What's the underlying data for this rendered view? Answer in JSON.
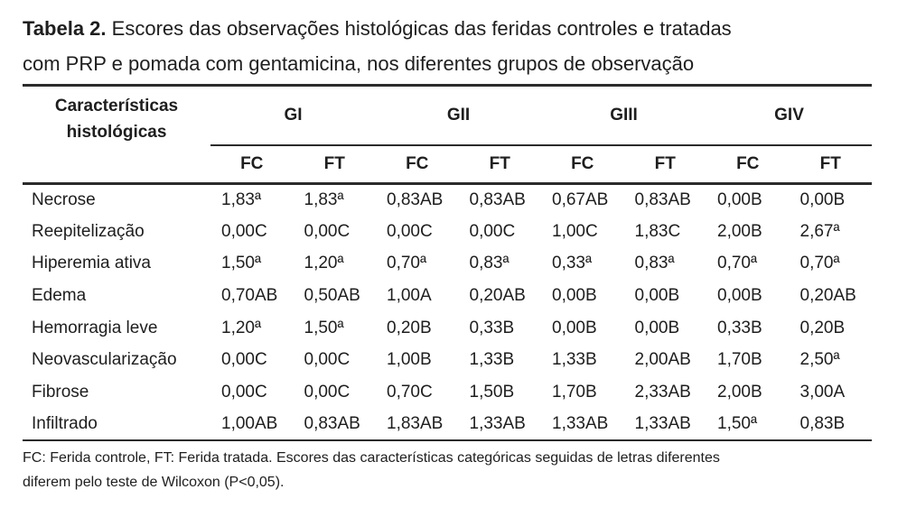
{
  "title": {
    "label": "Tabela 2.",
    "line1": "Escores das observações histológicas das feridas controles e tratadas",
    "line2": "com PRP e pomada com gentamicina, nos diferentes grupos de observação"
  },
  "table": {
    "corner_header": {
      "line1": "Características",
      "line2": "histológicas"
    },
    "groups": [
      "GI",
      "GII",
      "GIII",
      "GIV"
    ],
    "sub_columns": [
      "FC",
      "FT",
      "FC",
      "FT",
      "FC",
      "FT",
      "FC",
      "FT"
    ],
    "rows": [
      {
        "label": "Necrose",
        "values": [
          "1,83ª",
          "1,83ª",
          "0,83AB",
          "0,83AB",
          "0,67AB",
          "0,83AB",
          "0,00B",
          "0,00B"
        ]
      },
      {
        "label": "Reepitelização",
        "values": [
          "0,00C",
          "0,00C",
          "0,00C",
          "0,00C",
          "1,00C",
          "1,83C",
          "2,00B",
          "2,67ª"
        ]
      },
      {
        "label": "Hiperemia ativa",
        "values": [
          "1,50ª",
          "1,20ª",
          "0,70ª",
          "0,83ª",
          "0,33ª",
          "0,83ª",
          "0,70ª",
          "0,70ª"
        ]
      },
      {
        "label": "Edema",
        "values": [
          "0,70AB",
          "0,50AB",
          "1,00A",
          "0,20AB",
          "0,00B",
          "0,00B",
          "0,00B",
          "0,20AB"
        ]
      },
      {
        "label": "Hemorragia leve",
        "values": [
          "1,20ª",
          "1,50ª",
          "0,20B",
          "0,33B",
          "0,00B",
          "0,00B",
          "0,33B",
          "0,20B"
        ]
      },
      {
        "label": "Neovascularização",
        "values": [
          "0,00C",
          "0,00C",
          "1,00B",
          "1,33B",
          "1,33B",
          "2,00AB",
          "1,70B",
          "2,50ª"
        ]
      },
      {
        "label": "Fibrose",
        "values": [
          "0,00C",
          "0,00C",
          "0,70C",
          "1,50B",
          "1,70B",
          "2,33AB",
          "2,00B",
          "3,00A"
        ]
      },
      {
        "label": "Infiltrado",
        "values": [
          "1,00AB",
          "0,83AB",
          "1,83AB",
          "1,33AB",
          "1,33AB",
          "1,33AB",
          "1,50ª",
          "0,83B"
        ]
      }
    ]
  },
  "footnote": {
    "line1": "FC: Ferida controle, FT: Ferida tratada. Escores das características categóricas seguidas de letras diferentes",
    "line2": "diferem pelo teste de Wilcoxon (P<0,05)."
  },
  "colors": {
    "text": "#1e1e1e",
    "rule": "#2b2b2b",
    "background": "#ffffff"
  }
}
